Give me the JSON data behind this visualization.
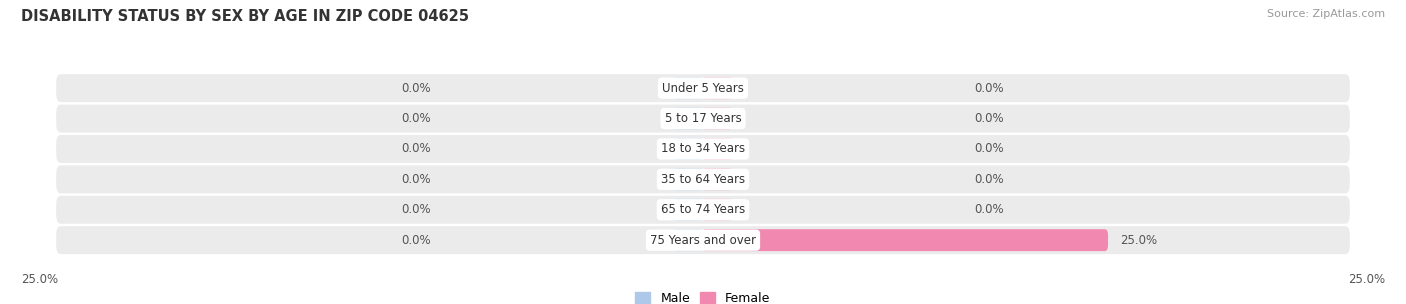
{
  "title": "DISABILITY STATUS BY SEX BY AGE IN ZIP CODE 04625",
  "source": "Source: ZipAtlas.com",
  "categories": [
    "Under 5 Years",
    "5 to 17 Years",
    "18 to 34 Years",
    "35 to 64 Years",
    "65 to 74 Years",
    "75 Years and over"
  ],
  "male_values": [
    0.0,
    0.0,
    0.0,
    0.0,
    0.0,
    0.0
  ],
  "female_values": [
    0.0,
    0.0,
    0.0,
    0.0,
    0.0,
    25.0
  ],
  "male_color": "#adc8e8",
  "female_color": "#f088b0",
  "male_stub_color": "#c5daf0",
  "female_stub_color": "#f4b8d0",
  "male_label": "Male",
  "female_label": "Female",
  "max_val": 25.0,
  "fig_bg_color": "#ffffff",
  "row_bg_color": "#ebebeb",
  "row_sep_color": "#ffffff",
  "title_color": "#333333",
  "source_color": "#999999",
  "value_color": "#555555",
  "label_color": "#333333",
  "figsize": [
    14.06,
    3.04
  ],
  "dpi": 100
}
